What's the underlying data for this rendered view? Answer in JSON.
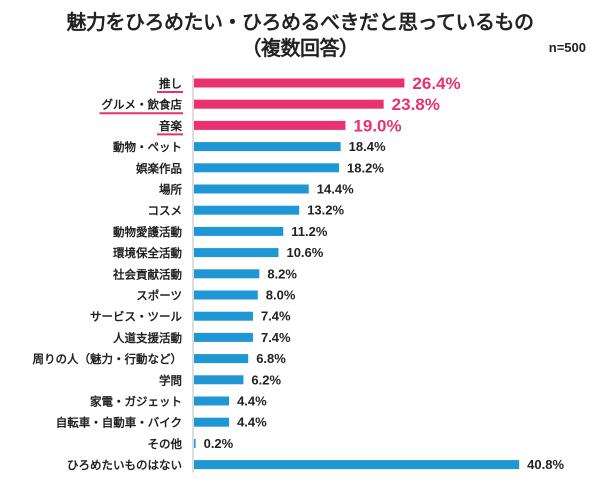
{
  "title_line1": "魅力をひろめたい・ひろめるべきだと思っているもの",
  "title_line2": "（複数回答）",
  "sample_size": "n=500",
  "colors": {
    "highlight": "#e8316e",
    "normal": "#1f97d4",
    "text": "#222222",
    "axis": "#bbbbbb"
  },
  "chart_data": {
    "type": "bar",
    "orientation": "horizontal",
    "unit": "%",
    "xlim": [
      0,
      45
    ],
    "categories": [
      "推し",
      "グルメ・飲食店",
      "音楽",
      "動物・ペット",
      "娯楽作品",
      "場所",
      "コスメ",
      "動物愛護活動",
      "環境保全活動",
      "社会貢献活動",
      "スポーツ",
      "サービス・ツール",
      "人道支援活動",
      "周りの人（魅力・行動など）",
      "学問",
      "家電・ガジェット",
      "自転車・自動車・バイク",
      "その他",
      "ひろめたいものはない"
    ],
    "values": [
      26.4,
      23.8,
      19.0,
      18.4,
      18.2,
      14.4,
      13.2,
      11.2,
      10.6,
      8.2,
      8.0,
      7.4,
      7.4,
      6.8,
      6.2,
      4.4,
      4.4,
      0.2,
      40.8
    ],
    "value_labels": [
      "26.4%",
      "23.8%",
      "19.0%",
      "18.4%",
      "18.2%",
      "14.4%",
      "13.2%",
      "11.2%",
      "10.6%",
      "8.2%",
      "8.0%",
      "7.4%",
      "7.4%",
      "6.8%",
      "6.2%",
      "4.4%",
      "4.4%",
      "0.2%",
      "40.8%"
    ],
    "highlighted_count": 3
  }
}
